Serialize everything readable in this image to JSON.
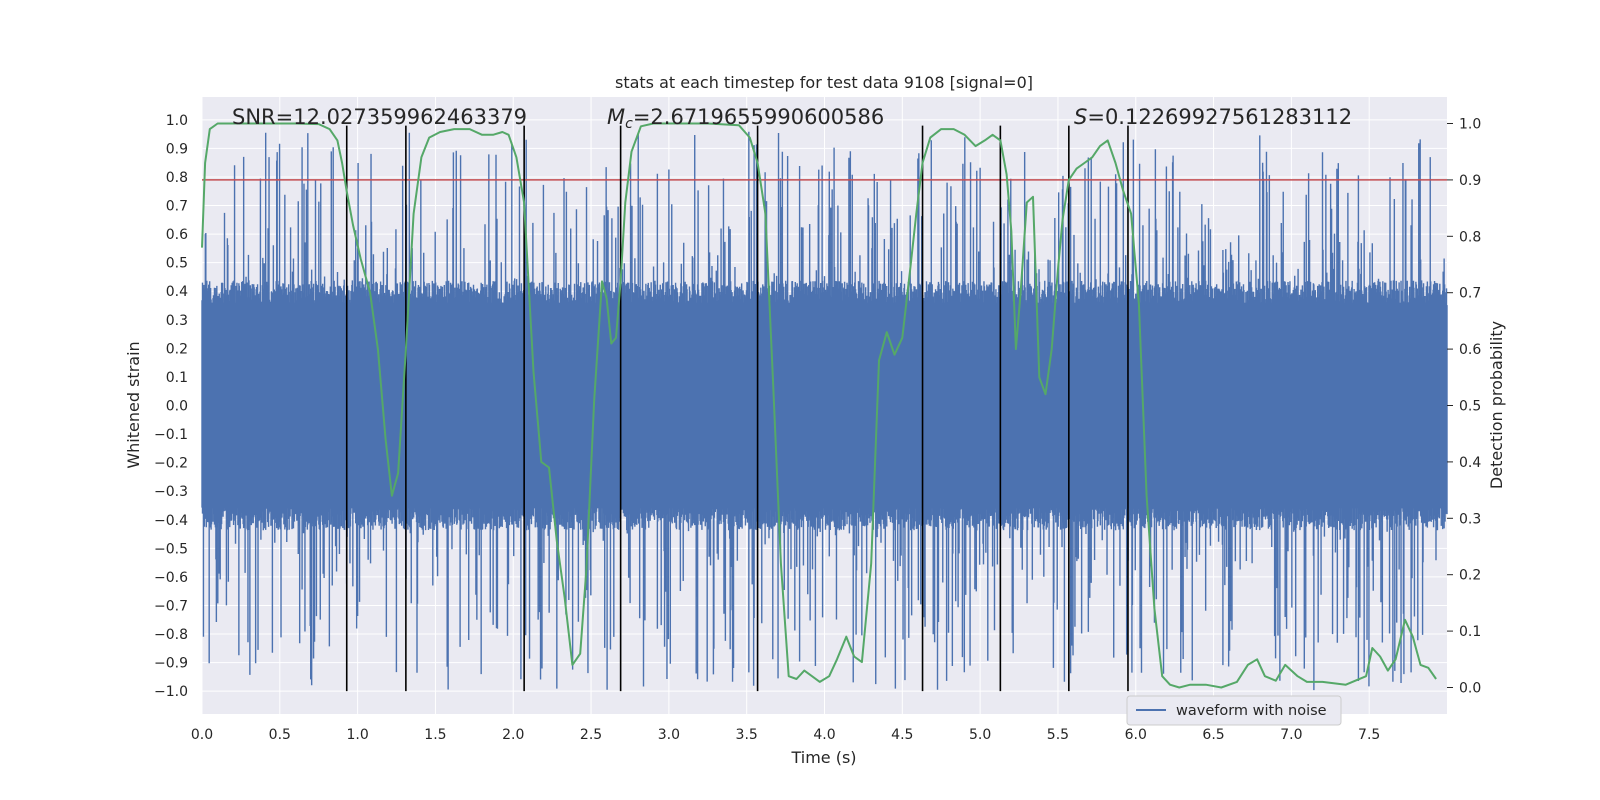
{
  "chart_data": {
    "type": "line",
    "title": "stats at each timestep for test data 9108 [signal=0]",
    "xlabel": "Time (s)",
    "ylabel": "Whitened strain",
    "y2label": "Detection probability",
    "xlim": [
      0.0,
      8.0
    ],
    "ylim": [
      -1.08,
      1.08
    ],
    "y2lim": [
      -0.047,
      1.047
    ],
    "xticks": [
      0.0,
      0.5,
      1.0,
      1.5,
      2.0,
      2.5,
      3.0,
      3.5,
      4.0,
      4.5,
      5.0,
      5.5,
      6.0,
      6.5,
      7.0,
      7.5
    ],
    "xtick_labels": [
      "0.0",
      "0.5",
      "1.0",
      "1.5",
      "2.0",
      "2.5",
      "3.0",
      "3.5",
      "4.0",
      "4.5",
      "5.0",
      "5.5",
      "6.0",
      "6.5",
      "7.0",
      "7.5"
    ],
    "yticks": [
      1.0,
      0.9,
      0.8,
      0.7,
      0.6,
      0.5,
      0.4,
      0.3,
      0.2,
      0.1,
      0.0,
      -0.1,
      -0.2,
      -0.3,
      -0.4,
      -0.5,
      -0.6,
      -0.7,
      -0.8,
      -0.9,
      -1.0
    ],
    "ytick_labels": [
      "1.0",
      "0.9",
      "0.8",
      "0.7",
      "0.6",
      "0.5",
      "0.4",
      "0.3",
      "0.2",
      "0.1",
      "0.0",
      "−0.1",
      "−0.2",
      "−0.3",
      "−0.4",
      "−0.5",
      "−0.6",
      "−0.7",
      "−0.8",
      "−0.9",
      "−1.0"
    ],
    "y2ticks": [
      1.0,
      0.9,
      0.8,
      0.7,
      0.6,
      0.5,
      0.4,
      0.3,
      0.2,
      0.1,
      0.0
    ],
    "y2tick_labels": [
      "1.0",
      "0.9",
      "0.8",
      "0.7",
      "0.6",
      "0.5",
      "0.4",
      "0.3",
      "0.2",
      "0.1",
      "0.0"
    ],
    "grid": true,
    "legend": {
      "position": "lower-right",
      "entries": [
        "waveform with noise"
      ]
    },
    "annotations": {
      "snr": "SNR=12.027359962463379",
      "mc_symbol": "M",
      "mc_subscript": "c",
      "mc_value": "=2.6719655990600586",
      "s_symbol": "S",
      "s_value": "=0.12269927561283112"
    },
    "threshold": {
      "axis": "y2",
      "value": 0.9,
      "color": "#c44e52"
    },
    "event_markers": {
      "x": [
        0.93,
        1.31,
        2.07,
        2.69,
        3.57,
        4.63,
        5.13,
        5.57,
        5.95
      ],
      "y_range": [
        -1.0,
        0.98
      ],
      "color": "#000000"
    },
    "series": [
      {
        "name": "waveform with noise",
        "axis": "y",
        "color": "#4c72b0",
        "description": "dense whitened strain noise trace, 0-8 s",
        "envelope": {
          "t": [
            0,
            8
          ],
          "core_amplitude": 0.38,
          "peak_max": 0.96,
          "peak_min": -1.0
        }
      },
      {
        "name": "detection probability",
        "axis": "y2",
        "color": "#55a868",
        "x": [
          0.0,
          0.02,
          0.05,
          0.1,
          0.2,
          0.4,
          0.6,
          0.75,
          0.82,
          0.87,
          0.9,
          0.93,
          0.97,
          1.02,
          1.08,
          1.13,
          1.18,
          1.22,
          1.26,
          1.31,
          1.36,
          1.41,
          1.46,
          1.53,
          1.62,
          1.72,
          1.8,
          1.87,
          1.93,
          1.97,
          2.02,
          2.07,
          2.13,
          2.18,
          2.23,
          2.28,
          2.33,
          2.38,
          2.43,
          2.47,
          2.52,
          2.57,
          2.6,
          2.63,
          2.66,
          2.69,
          2.72,
          2.76,
          2.82,
          2.9,
          3.05,
          3.25,
          3.45,
          3.52,
          3.57,
          3.62,
          3.67,
          3.72,
          3.77,
          3.82,
          3.87,
          3.92,
          3.97,
          4.03,
          4.08,
          4.14,
          4.19,
          4.24,
          4.3,
          4.35,
          4.4,
          4.45,
          4.5,
          4.55,
          4.59,
          4.63,
          4.68,
          4.75,
          4.83,
          4.9,
          4.97,
          5.03,
          5.08,
          5.13,
          5.17,
          5.2,
          5.23,
          5.26,
          5.3,
          5.34,
          5.38,
          5.42,
          5.46,
          5.5,
          5.53,
          5.57,
          5.62,
          5.67,
          5.72,
          5.77,
          5.82,
          5.87,
          5.92,
          5.97,
          6.02,
          6.07,
          6.12,
          6.17,
          6.22,
          6.28,
          6.35,
          6.45,
          6.55,
          6.65,
          6.72,
          6.78,
          6.83,
          6.9,
          6.96,
          7.04,
          7.1,
          7.2,
          7.35,
          7.48,
          7.52,
          7.57,
          7.62,
          7.67,
          7.73,
          7.78,
          7.83,
          7.88,
          7.93
        ],
        "values": [
          0.78,
          0.93,
          0.99,
          1.0,
          1.0,
          1.0,
          1.0,
          0.999,
          0.99,
          0.97,
          0.93,
          0.88,
          0.82,
          0.76,
          0.7,
          0.6,
          0.44,
          0.34,
          0.38,
          0.6,
          0.84,
          0.94,
          0.975,
          0.985,
          0.99,
          0.99,
          0.98,
          0.98,
          0.985,
          0.98,
          0.94,
          0.86,
          0.56,
          0.4,
          0.39,
          0.26,
          0.16,
          0.04,
          0.06,
          0.21,
          0.51,
          0.72,
          0.69,
          0.61,
          0.62,
          0.72,
          0.86,
          0.95,
          0.995,
          1.0,
          1.0,
          1.0,
          0.997,
          0.975,
          0.93,
          0.84,
          0.54,
          0.22,
          0.02,
          0.015,
          0.03,
          0.02,
          0.01,
          0.02,
          0.05,
          0.09,
          0.055,
          0.045,
          0.22,
          0.58,
          0.63,
          0.59,
          0.62,
          0.74,
          0.84,
          0.93,
          0.975,
          0.99,
          0.99,
          0.98,
          0.96,
          0.97,
          0.98,
          0.97,
          0.91,
          0.81,
          0.6,
          0.7,
          0.86,
          0.87,
          0.55,
          0.52,
          0.6,
          0.74,
          0.83,
          0.9,
          0.92,
          0.93,
          0.94,
          0.96,
          0.97,
          0.93,
          0.88,
          0.84,
          0.68,
          0.34,
          0.14,
          0.02,
          0.005,
          0.0,
          0.005,
          0.005,
          0.0,
          0.01,
          0.04,
          0.05,
          0.02,
          0.012,
          0.04,
          0.02,
          0.01,
          0.01,
          0.005,
          0.02,
          0.07,
          0.055,
          0.03,
          0.05,
          0.12,
          0.09,
          0.04,
          0.035,
          0.015
        ]
      }
    ]
  }
}
